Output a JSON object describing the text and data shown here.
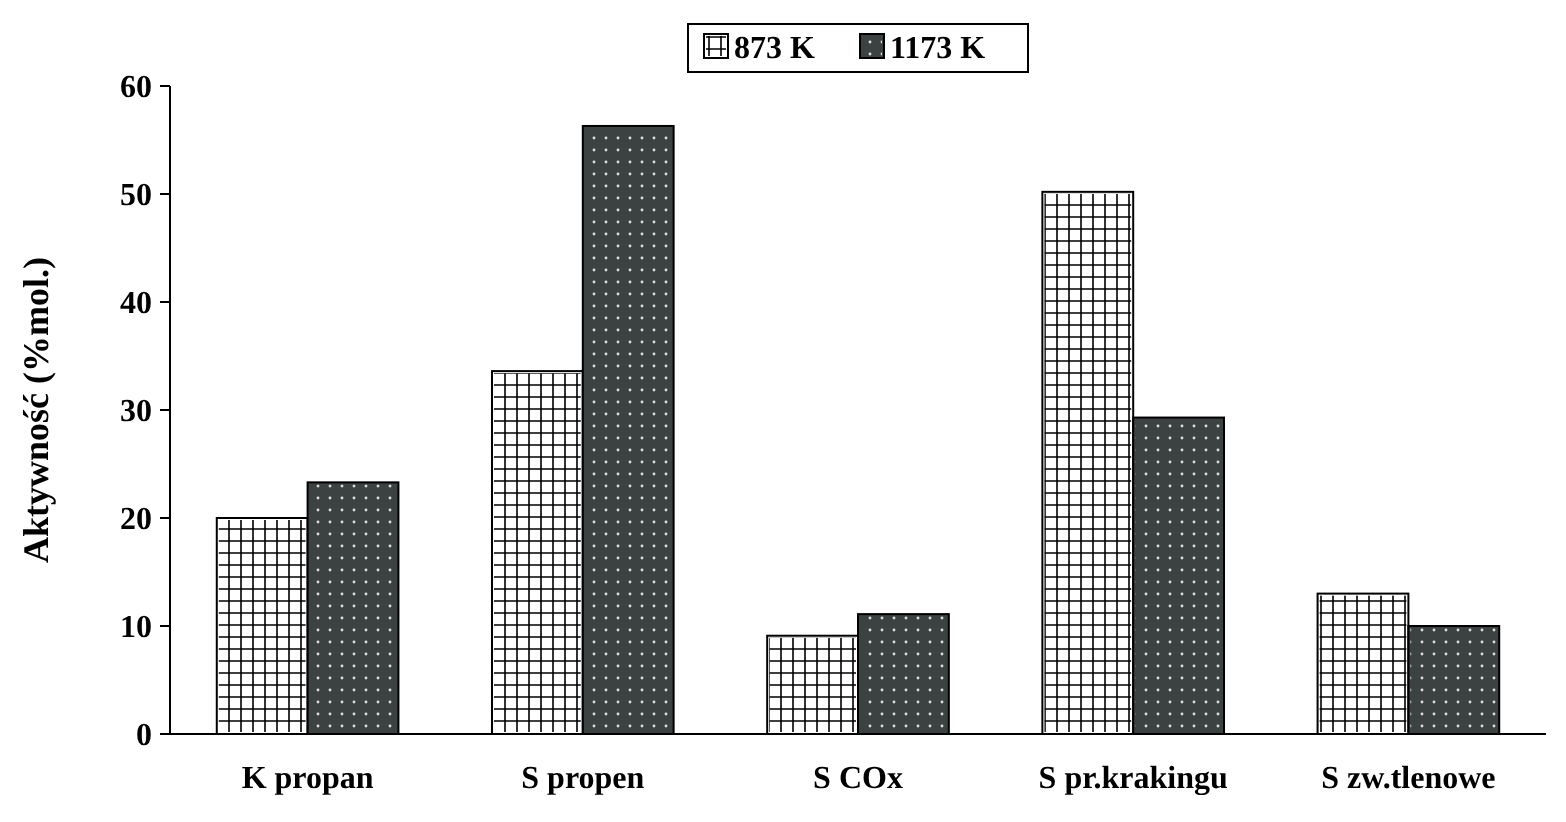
{
  "chart_data": {
    "type": "bar",
    "ylabel": "Aktywność (%mol.)",
    "categories": [
      "K propan",
      "S propen",
      "S COx",
      "S pr.krakingu",
      "S zw.tlenowe"
    ],
    "series": [
      {
        "name": "873 K",
        "color": "#ffffff",
        "values": [
          20,
          33.6,
          9.1,
          50.2,
          13
        ]
      },
      {
        "name": "1173 K",
        "color": "#3c4242",
        "values": [
          23.3,
          56.3,
          11.1,
          29.3,
          10
        ]
      }
    ],
    "ylim": [
      0,
      60
    ],
    "yticks": [
      0,
      10,
      20,
      30,
      40,
      50,
      60
    ],
    "legend": "top",
    "grid": false
  }
}
